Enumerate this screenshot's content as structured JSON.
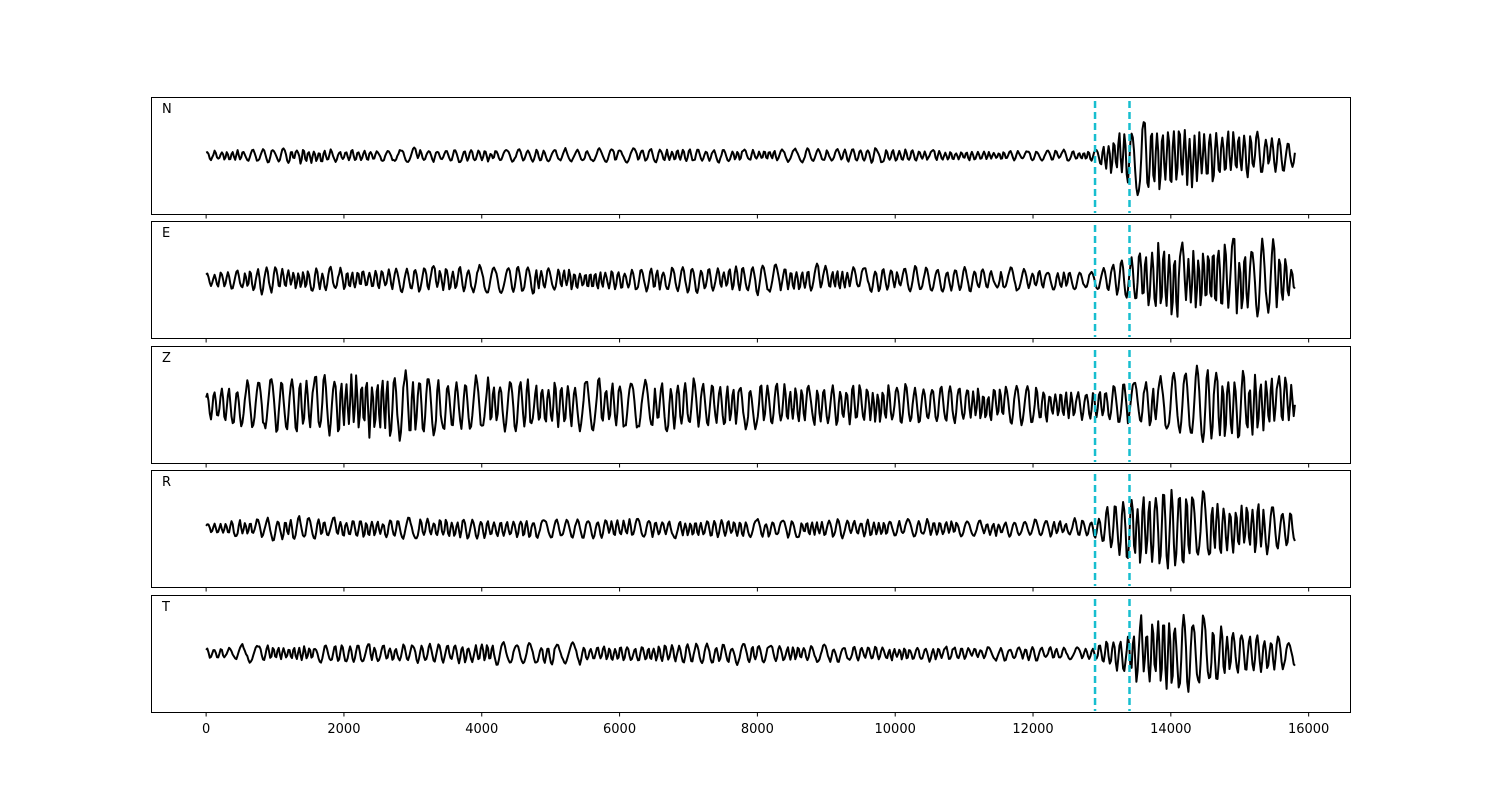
{
  "chart_data": {
    "type": "line",
    "x_range": [
      0,
      15800
    ],
    "xlim": [
      -800,
      16600
    ],
    "xticks": [
      0,
      2000,
      4000,
      6000,
      8000,
      10000,
      12000,
      14000,
      16000
    ],
    "xtick_labels": [
      "0",
      "2000",
      "4000",
      "6000",
      "8000",
      "10000",
      "12000",
      "14000",
      "16000"
    ],
    "grid": false,
    "trace_color": "#000000",
    "marker_color": "#17becf",
    "markers_x": [
      12900,
      13400
    ],
    "panels": [
      {
        "label": "N",
        "profile": [
          [
            0,
            0.1
          ],
          [
            1400,
            0.18
          ],
          [
            2300,
            0.12
          ],
          [
            3500,
            0.14
          ],
          [
            5000,
            0.12
          ],
          [
            6800,
            0.16
          ],
          [
            8000,
            0.12
          ],
          [
            9500,
            0.16
          ],
          [
            11000,
            0.12
          ],
          [
            12500,
            0.1
          ],
          [
            12880,
            0.12
          ],
          [
            13200,
            0.55
          ],
          [
            13600,
            0.95
          ],
          [
            14100,
            0.85
          ],
          [
            15000,
            0.6
          ],
          [
            15800,
            0.3
          ]
        ]
      },
      {
        "label": "E",
        "profile": [
          [
            0,
            0.14
          ],
          [
            800,
            0.3
          ],
          [
            1300,
            0.28
          ],
          [
            2600,
            0.24
          ],
          [
            4200,
            0.28
          ],
          [
            6000,
            0.24
          ],
          [
            8000,
            0.3
          ],
          [
            10000,
            0.26
          ],
          [
            12000,
            0.22
          ],
          [
            12880,
            0.18
          ],
          [
            13300,
            0.4
          ],
          [
            13800,
            0.9
          ],
          [
            14200,
            0.95
          ],
          [
            15500,
            0.8
          ],
          [
            15800,
            0.3
          ]
        ]
      },
      {
        "label": "Z",
        "profile": [
          [
            0,
            0.3
          ],
          [
            700,
            0.55
          ],
          [
            1600,
            0.6
          ],
          [
            2500,
            0.85
          ],
          [
            3500,
            0.55
          ],
          [
            5200,
            0.55
          ],
          [
            6500,
            0.55
          ],
          [
            8000,
            0.5
          ],
          [
            10000,
            0.45
          ],
          [
            11800,
            0.45
          ],
          [
            12880,
            0.35
          ],
          [
            13400,
            0.45
          ],
          [
            14000,
            0.6
          ],
          [
            14900,
            0.95
          ],
          [
            15800,
            0.5
          ]
        ]
      },
      {
        "label": "R",
        "profile": [
          [
            0,
            0.12
          ],
          [
            1200,
            0.26
          ],
          [
            2000,
            0.2
          ],
          [
            3500,
            0.22
          ],
          [
            5000,
            0.2
          ],
          [
            6200,
            0.2
          ],
          [
            8000,
            0.2
          ],
          [
            10000,
            0.18
          ],
          [
            12000,
            0.16
          ],
          [
            12880,
            0.2
          ],
          [
            13300,
            0.75
          ],
          [
            13900,
            0.95
          ],
          [
            14500,
            0.7
          ],
          [
            15400,
            0.6
          ],
          [
            15800,
            0.35
          ]
        ]
      },
      {
        "label": "T",
        "profile": [
          [
            0,
            0.1
          ],
          [
            800,
            0.18
          ],
          [
            2000,
            0.18
          ],
          [
            4100,
            0.22
          ],
          [
            5600,
            0.18
          ],
          [
            7500,
            0.2
          ],
          [
            9500,
            0.16
          ],
          [
            11500,
            0.14
          ],
          [
            12880,
            0.14
          ],
          [
            13300,
            0.5
          ],
          [
            13700,
            0.85
          ],
          [
            14100,
            0.98
          ],
          [
            14800,
            0.6
          ],
          [
            15800,
            0.25
          ]
        ]
      }
    ]
  }
}
